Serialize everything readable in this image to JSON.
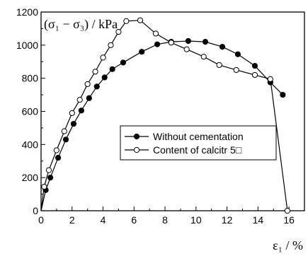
{
  "chart_data": {
    "type": "line",
    "title": "",
    "ylabel": "(σ₁ − σ₃) / kPa",
    "xlabel": "ε₁ / %",
    "xlim": [
      0,
      17
    ],
    "ylim": [
      0,
      1200
    ],
    "xticks": [
      0,
      2,
      4,
      6,
      8,
      10,
      12,
      14,
      16
    ],
    "yticks": [
      0,
      200,
      400,
      600,
      800,
      1000,
      1200
    ],
    "grid": false,
    "legend_position": "center-right",
    "series": [
      {
        "name": "Without cementation",
        "marker": "filled-circle",
        "color": "#000000",
        "x": [
          0,
          0.3,
          0.6,
          1.1,
          1.6,
          2.1,
          2.6,
          3.1,
          3.6,
          4.1,
          4.6,
          5.3,
          6.5,
          7.5,
          8.4,
          9.5,
          10.6,
          11.7,
          12.7,
          13.8,
          14.8,
          15.6
        ],
        "y": [
          0,
          125,
          200,
          320,
          430,
          525,
          605,
          680,
          750,
          805,
          855,
          895,
          960,
          1005,
          1020,
          1025,
          1020,
          990,
          945,
          875,
          775,
          700
        ]
      },
      {
        "name": "Content of calcitr 5□",
        "marker": "open-circle",
        "color": "#000000",
        "x": [
          0,
          0.2,
          0.5,
          1.0,
          1.5,
          2.0,
          2.5,
          3.0,
          3.5,
          4.0,
          4.5,
          5.0,
          5.5,
          6.4,
          7.4,
          8.4,
          9.4,
          10.5,
          11.5,
          12.6,
          13.8,
          14.8,
          15.9
        ],
        "y": [
          0,
          145,
          245,
          365,
          480,
          590,
          670,
          765,
          840,
          925,
          1000,
          1080,
          1145,
          1150,
          1070,
          1015,
          975,
          930,
          880,
          850,
          820,
          795,
          0
        ]
      }
    ]
  }
}
